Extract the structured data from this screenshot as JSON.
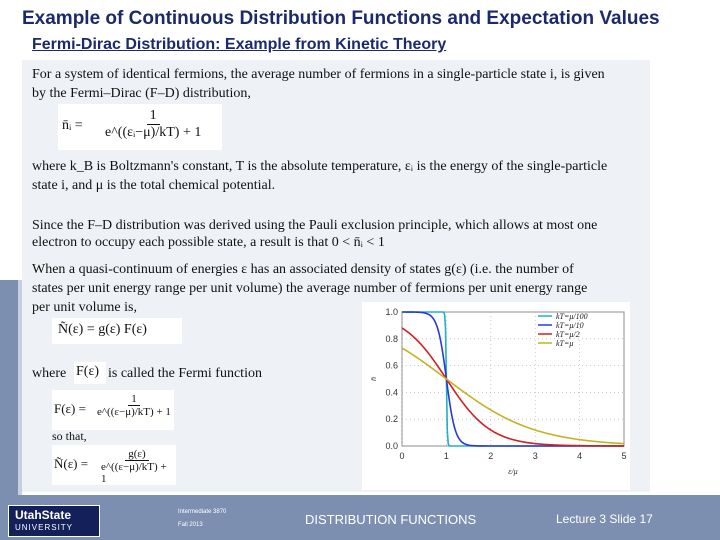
{
  "title": "Example of Continuous Distribution Functions and Expectation Values",
  "subtitle": "Fermi-Dirac Distribution: Example from Kinetic Theory",
  "body": {
    "p1_line1": "For a system of identical fermions, the average number of fermions in a single-particle state i, is given",
    "p1_line2": "by the Fermi–Dirac (F–D) distribution,",
    "eq1_lhs": "n̄ᵢ =",
    "eq1_num": "1",
    "eq1_den": "e^((εᵢ−μ)/kT) + 1",
    "p2_line1": "where k_B is Boltzmann's constant, T is the absolute temperature, εᵢ is the energy of the single-particle",
    "p2_line2": "state i, and μ is the total chemical potential.",
    "p3_line1": "Since the F–D distribution was derived using the Pauli exclusion principle, which allows at most one",
    "p3_line2": "electron to occupy each possible state, a result is that 0 < n̄ᵢ < 1",
    "p4_line1": "When a quasi-continuum of energies ε has an associated density of states g(ε) (i.e. the number of",
    "p4_line2": "states per unit energy range per unit volume) the average number of fermions per unit energy range",
    "p4_line3": "per unit volume is,",
    "eq2": "Ñ(ε) = g(ε) F(ε)",
    "where": "where",
    "where_f": "F(ε)",
    "where_rest": "is called the Fermi function",
    "eq3_lhs": "F(ε) =",
    "eq3_num": "1",
    "eq3_den": "e^((ε−μ)/kT) + 1",
    "so_that": "so that,",
    "eq4_lhs": "Ñ(ε) =",
    "eq4_num": "g(ε)",
    "eq4_den": "e^((ε−μ)/kT) + 1"
  },
  "chart_data": {
    "type": "line",
    "title": "",
    "xlabel": "ε/μ",
    "ylabel": "n̄",
    "xlim": [
      0,
      5
    ],
    "ylim": [
      0,
      1.0
    ],
    "x_ticks": [
      "0",
      "1",
      "2",
      "3",
      "4",
      "5"
    ],
    "y_ticks": [
      "0.0",
      "0.2",
      "0.4",
      "0.6",
      "0.8",
      "1.0"
    ],
    "legend_position": "top-right",
    "series": [
      {
        "name": "kT=μ/100",
        "color": "#20b0c8",
        "kt": 0.01
      },
      {
        "name": "kT=μ/10",
        "color": "#2a3ad0",
        "kt": 0.1
      },
      {
        "name": "kT=μ/2",
        "color": "#d02020",
        "kt": 0.5
      },
      {
        "name": "kT=μ",
        "color": "#c8b020",
        "kt": 1.0
      }
    ]
  },
  "footer": {
    "logo_top": "UtahState",
    "logo_bottom": "UNIVERSITY",
    "course": "Intermediate 3870",
    "term": "Fall 2013",
    "center": "DISTRIBUTION FUNCTIONS",
    "lecture_label": "Lecture",
    "lecture_num": "3",
    "slide_label": "Slide",
    "slide_num": "17"
  }
}
